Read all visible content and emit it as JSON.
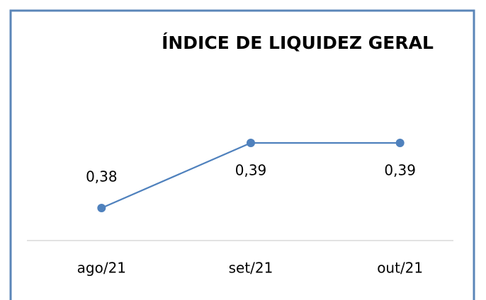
{
  "chart_data": {
    "type": "line",
    "title": "ÍNDICE DE LIQUIDEZ GERAL",
    "categories": [
      "ago/21",
      "set/21",
      "out/21"
    ],
    "series": [
      {
        "color": "#4f81bd",
        "values": [
          0.38,
          0.39,
          0.39
        ],
        "value_labels": [
          "0,38",
          "0,39",
          "0,39"
        ]
      }
    ],
    "ylim": [
      0.375,
      0.4
    ]
  }
}
